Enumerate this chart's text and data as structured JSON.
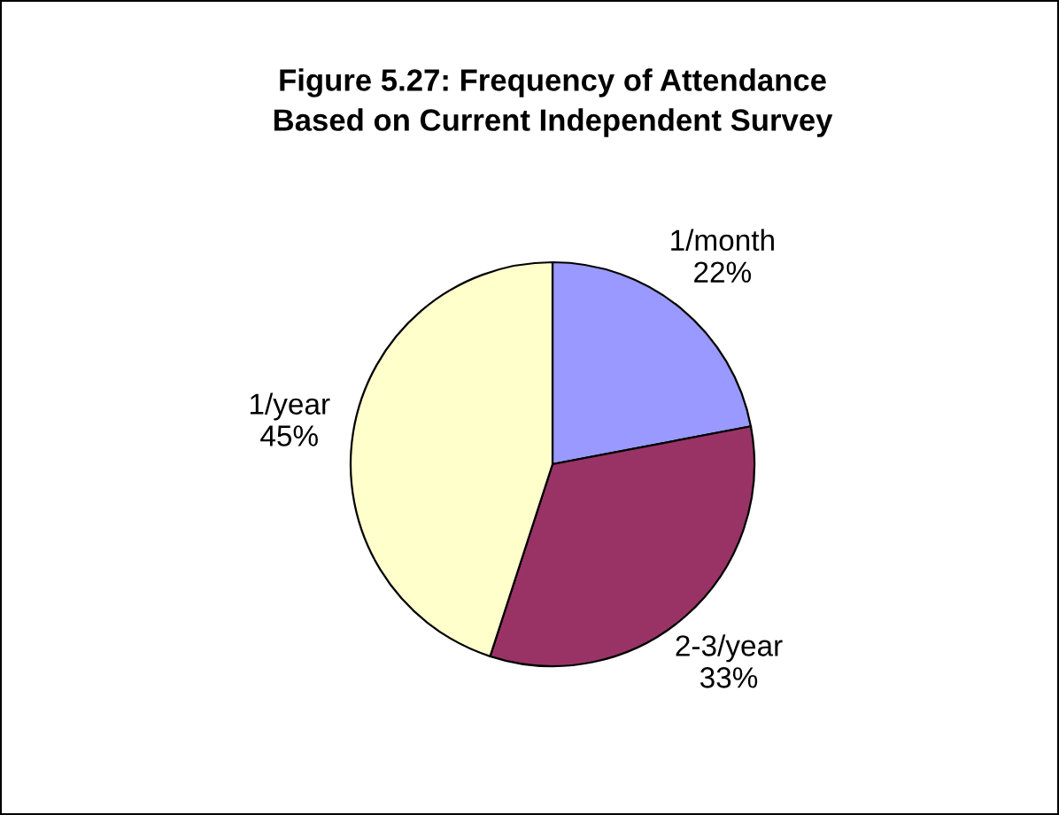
{
  "chart_data": {
    "type": "pie",
    "title": "Figure 5.27: Frequency of Attendance\nBased on Current Independent Survey",
    "categories": [
      "1/month",
      "2-3/year",
      "1/year"
    ],
    "values": [
      22,
      33,
      45
    ],
    "value_labels": [
      "22%",
      "33%",
      "45%"
    ],
    "colors": [
      "#9999ff",
      "#993366",
      "#ffffcc"
    ]
  }
}
